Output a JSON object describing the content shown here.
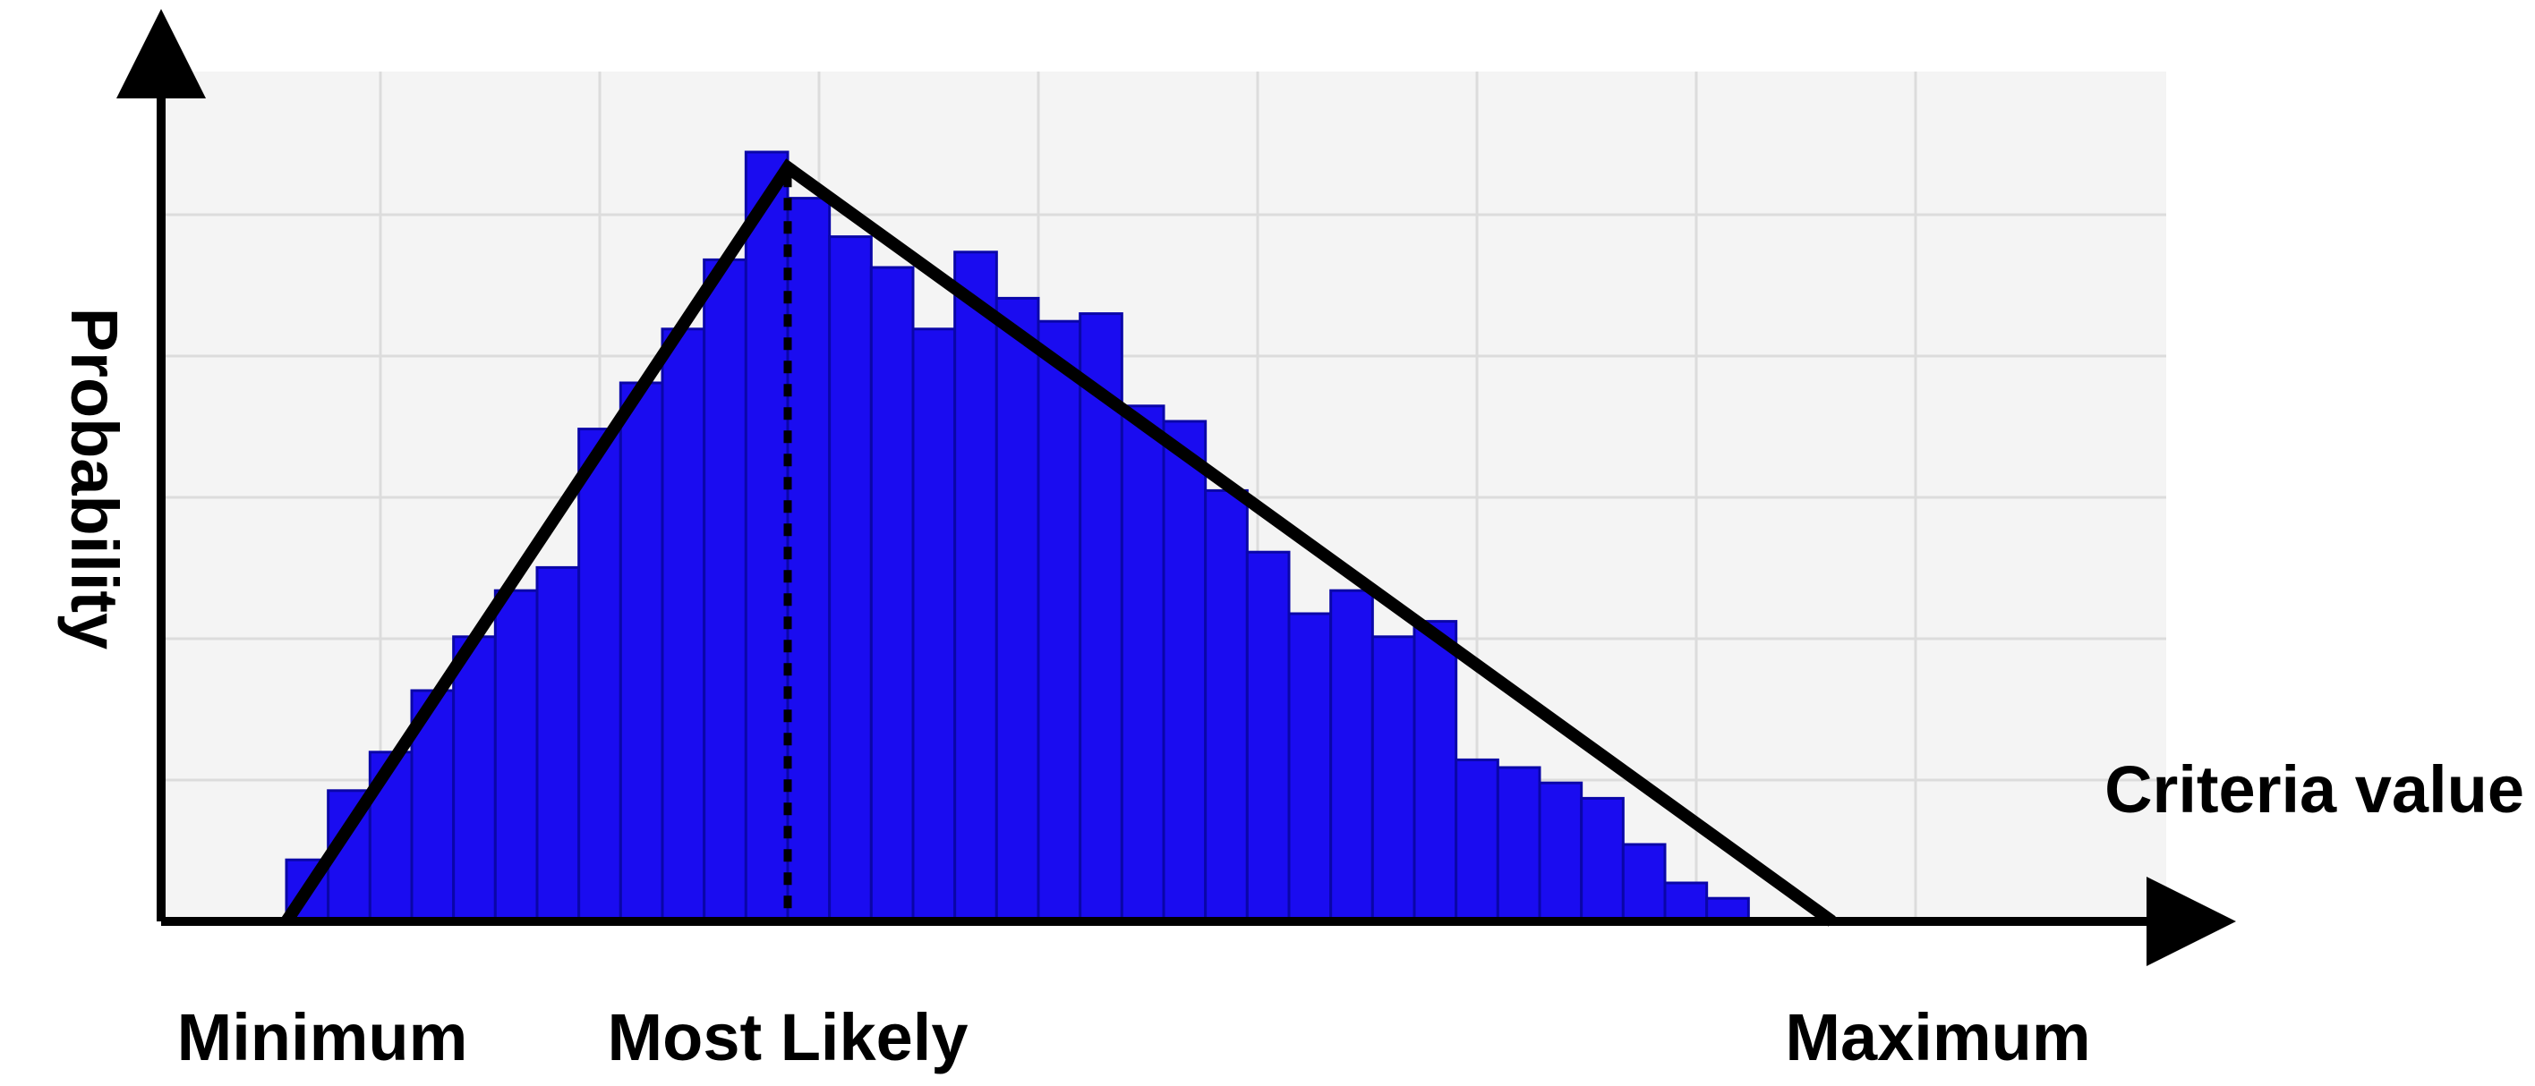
{
  "chart_data": {
    "type": "bar",
    "ylabel": "Probability",
    "xlabel": "Criteria value",
    "markers": {
      "minimum": "Minimum",
      "most_likely": "Most Likely",
      "maximum": "Maximum"
    },
    "grid": true,
    "bar_color": "#1a0cf0",
    "line_color": "#000000",
    "xlim": [
      0,
      48
    ],
    "ylim": [
      0,
      1.0
    ],
    "bins": [
      [
        3,
        4,
        0.08
      ],
      [
        4,
        5,
        0.17
      ],
      [
        5,
        6,
        0.22
      ],
      [
        6,
        7,
        0.3
      ],
      [
        7,
        8,
        0.37
      ],
      [
        8,
        9,
        0.43
      ],
      [
        9,
        10,
        0.46
      ],
      [
        10,
        11,
        0.64
      ],
      [
        11,
        12,
        0.7
      ],
      [
        12,
        13,
        0.77
      ],
      [
        13,
        14,
        0.86
      ],
      [
        14,
        15,
        1.0
      ],
      [
        15,
        16,
        0.94
      ],
      [
        16,
        17,
        0.89
      ],
      [
        17,
        18,
        0.85
      ],
      [
        18,
        19,
        0.77
      ],
      [
        19,
        20,
        0.87
      ],
      [
        20,
        21,
        0.81
      ],
      [
        21,
        22,
        0.78
      ],
      [
        22,
        23,
        0.79
      ],
      [
        23,
        24,
        0.67
      ],
      [
        24,
        25,
        0.65
      ],
      [
        25,
        26,
        0.56
      ],
      [
        26,
        27,
        0.48
      ],
      [
        27,
        28,
        0.4
      ],
      [
        28,
        29,
        0.43
      ],
      [
        29,
        30,
        0.37
      ],
      [
        30,
        31,
        0.39
      ],
      [
        31,
        32,
        0.21
      ],
      [
        32,
        33,
        0.2
      ],
      [
        33,
        34,
        0.18
      ],
      [
        34,
        35,
        0.16
      ],
      [
        35,
        36,
        0.1
      ],
      [
        36,
        37,
        0.05
      ],
      [
        37,
        38,
        0.03
      ]
    ],
    "triangle": {
      "min": 3,
      "mode": 15,
      "max": 40,
      "peak": 0.98
    }
  }
}
